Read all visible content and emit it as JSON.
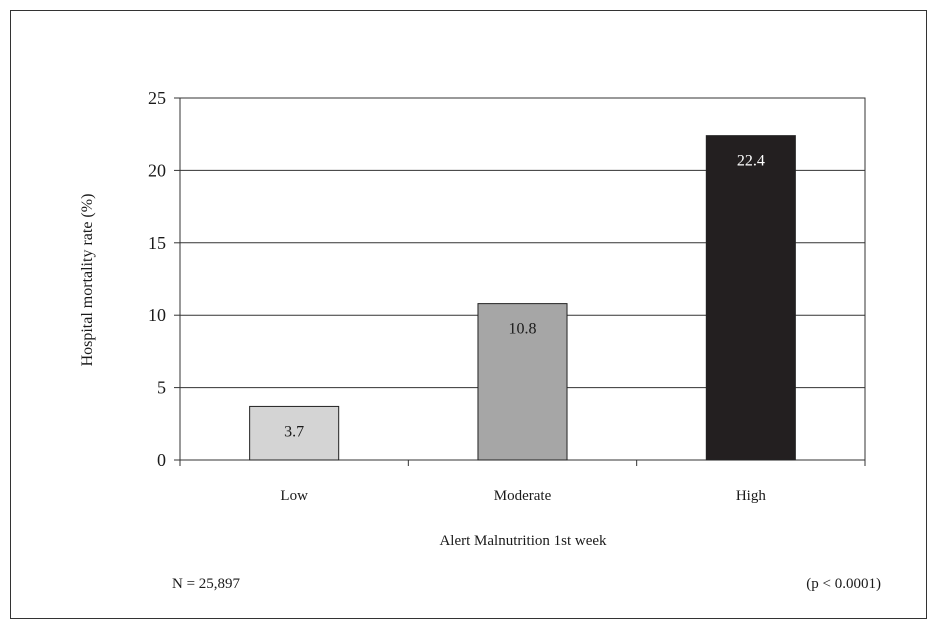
{
  "chart_data": {
    "type": "bar",
    "title": "",
    "xlabel": "Alert Malnutrition 1st week",
    "ylabel": "Hospital mortality rate (%)",
    "ylim": [
      0,
      25
    ],
    "yticks": [
      0,
      5,
      10,
      15,
      20,
      25
    ],
    "grid": true,
    "categories": [
      "Low",
      "Moderate",
      "High"
    ],
    "values": [
      3.7,
      10.8,
      22.4
    ],
    "value_labels": [
      "3.7",
      "10.8",
      "22.4"
    ],
    "bar_colors": [
      "#d4d4d4",
      "#a6a6a6",
      "#231f20"
    ],
    "label_colors": [
      "#1a1a1a",
      "#1a1a1a",
      "#ffffff"
    ]
  },
  "notes": {
    "n": "N = 25,897",
    "p": "(p < 0.0001)"
  }
}
